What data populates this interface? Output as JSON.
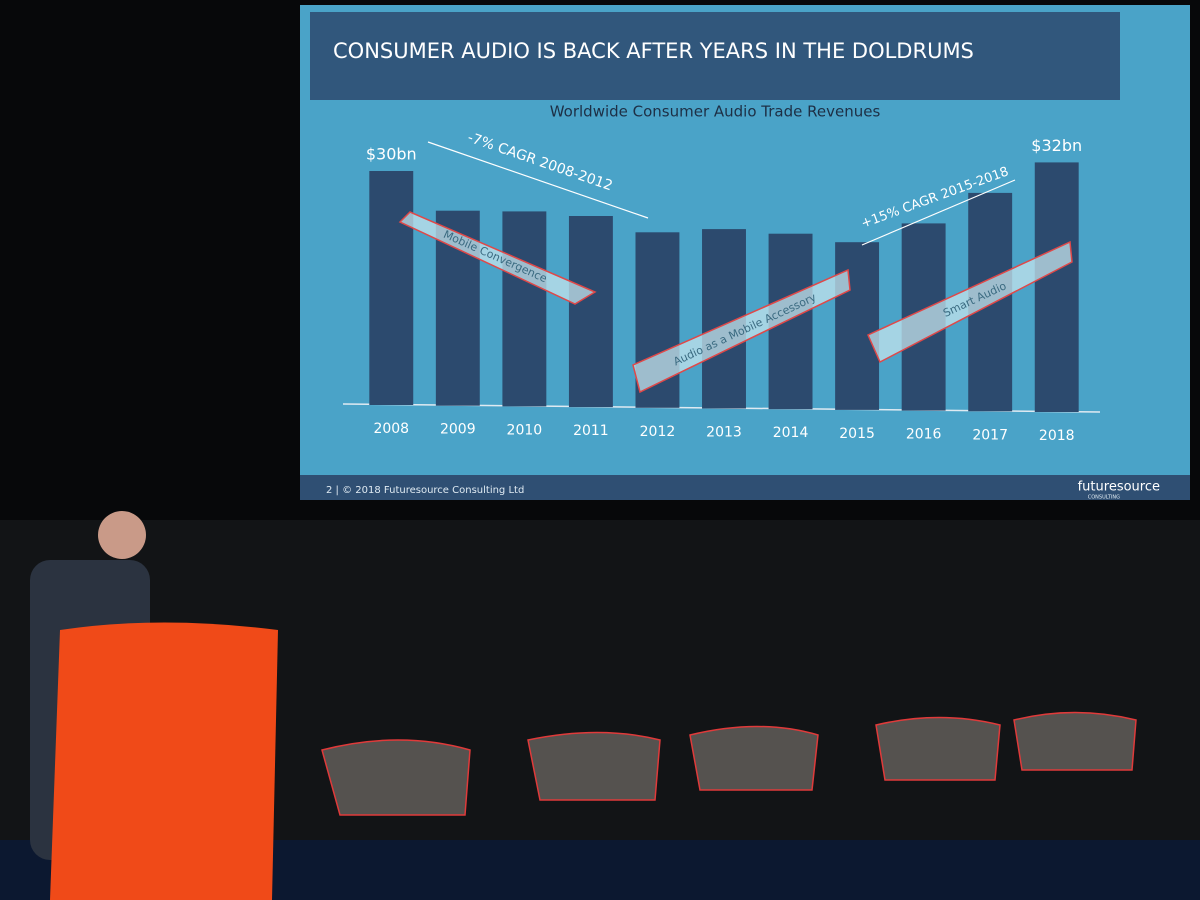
{
  "chart_data": {
    "type": "bar",
    "header": "CONSUMER AUDIO IS BACK AFTER YEARS IN THE DOLDRUMS",
    "title": "Worldwide Consumer Audio Trade Revenues",
    "categories": [
      "2008",
      "2009",
      "2010",
      "2011",
      "2012",
      "2013",
      "2014",
      "2015",
      "2016",
      "2017",
      "2018"
    ],
    "values": [
      30,
      25,
      25,
      24.5,
      22.5,
      23,
      22.5,
      21.5,
      24,
      28,
      32
    ],
    "value_labels": [
      "$30bn",
      null,
      null,
      null,
      null,
      null,
      null,
      null,
      null,
      null,
      "$32bn"
    ],
    "color": "#2c4a6e",
    "annotations": [
      "-7% CAGR 2008-2012",
      "+15% CAGR 2015-2018",
      "Mobile Convergence",
      "Audio as a Mobile Accessory",
      "Smart Audio"
    ],
    "footer": "2 | © 2018 Futuresource Consulting Ltd",
    "logo": "futuresource",
    "logo_sub": "CONSULTING"
  }
}
